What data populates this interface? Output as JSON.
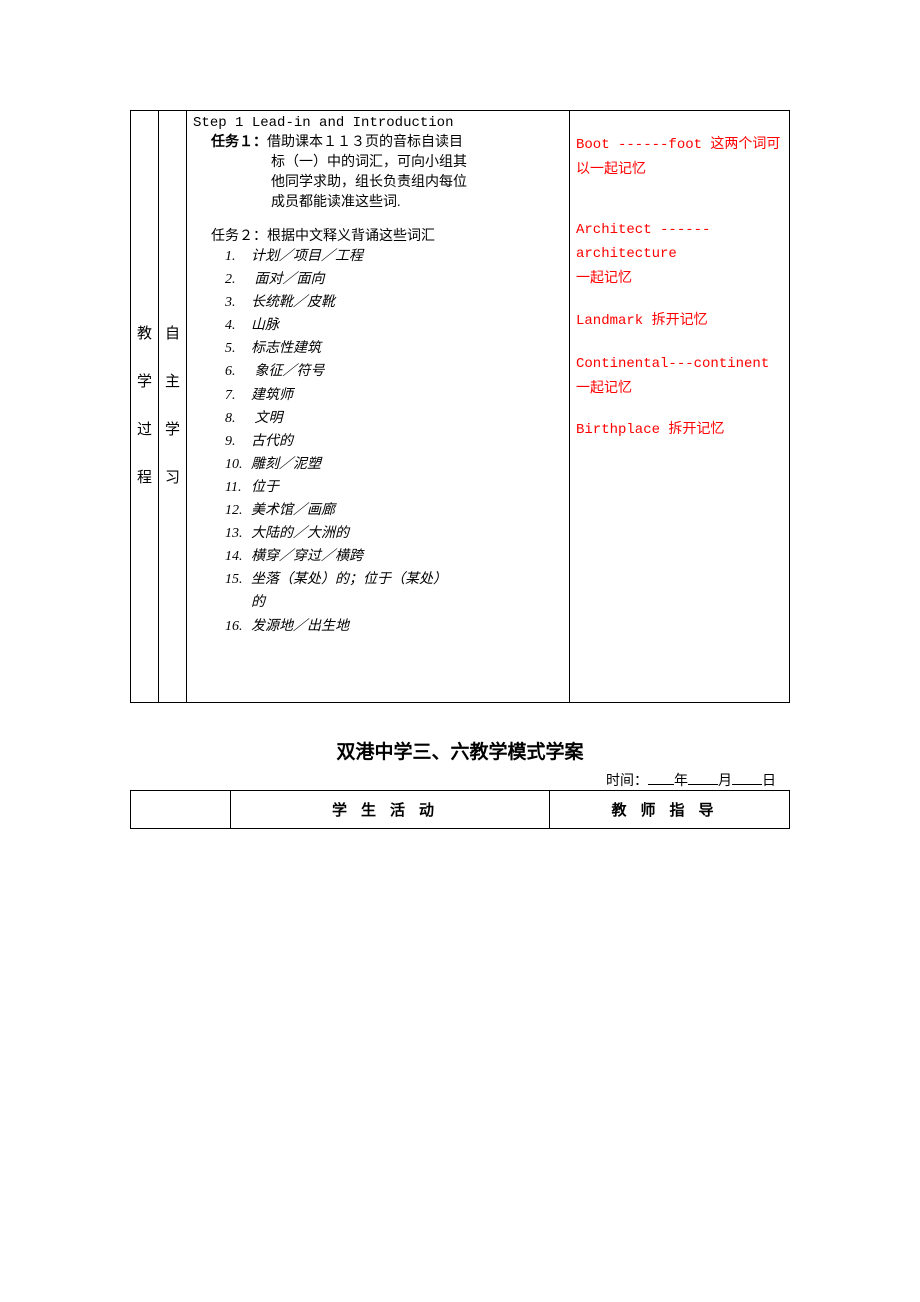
{
  "table1": {
    "left_vertical": "教学过程",
    "left_vertical2": "自主学习",
    "step_title": "Step 1 Lead-in and Introduction",
    "task1_label": "任务１：",
    "task1_text_l1": "借助课本１１３页的音标自读目",
    "task1_text_l2": "标（一）中的词汇，可向小组其",
    "task1_text_l3": "他同学求助，组长负责组内每位",
    "task1_text_l4": "成员都能读准这些词.",
    "task2_label": "任务２：根据中文释义背诵这些词汇",
    "vocab": [
      "计划／项目／工程",
      " 面对／面向",
      "长统靴／皮靴",
      "山脉",
      "标志性建筑",
      " 象征／符号",
      "建筑师",
      " 文明",
      "古代的",
      "雕刻／泥塑",
      "位于",
      "美术馆／画廊",
      "大陆的／大洲的",
      "横穿／穿过／横跨",
      "坐落（某处）的；位于（某处）的",
      "发源地／出生地"
    ],
    "notes": {
      "n1a": "Boot ------foot ",
      "n1b": "这两个词可以一起记忆",
      "n2a": "Architect ------architecture",
      "n2b": "一起记忆",
      "n3a": "Landmark ",
      "n3b": "拆开记忆",
      "n4a": "Continental---continent ",
      "n4b": "一起记忆",
      "n5a": "Birthplace ",
      "n5b": "拆开记忆"
    }
  },
  "title2": "双港中学三、六教学模式学案",
  "dateline": {
    "prefix": "时间：",
    "year": "年",
    "month": "月",
    "day": "日"
  },
  "table2": {
    "col2": "学生活动",
    "col3": "教师指导"
  }
}
